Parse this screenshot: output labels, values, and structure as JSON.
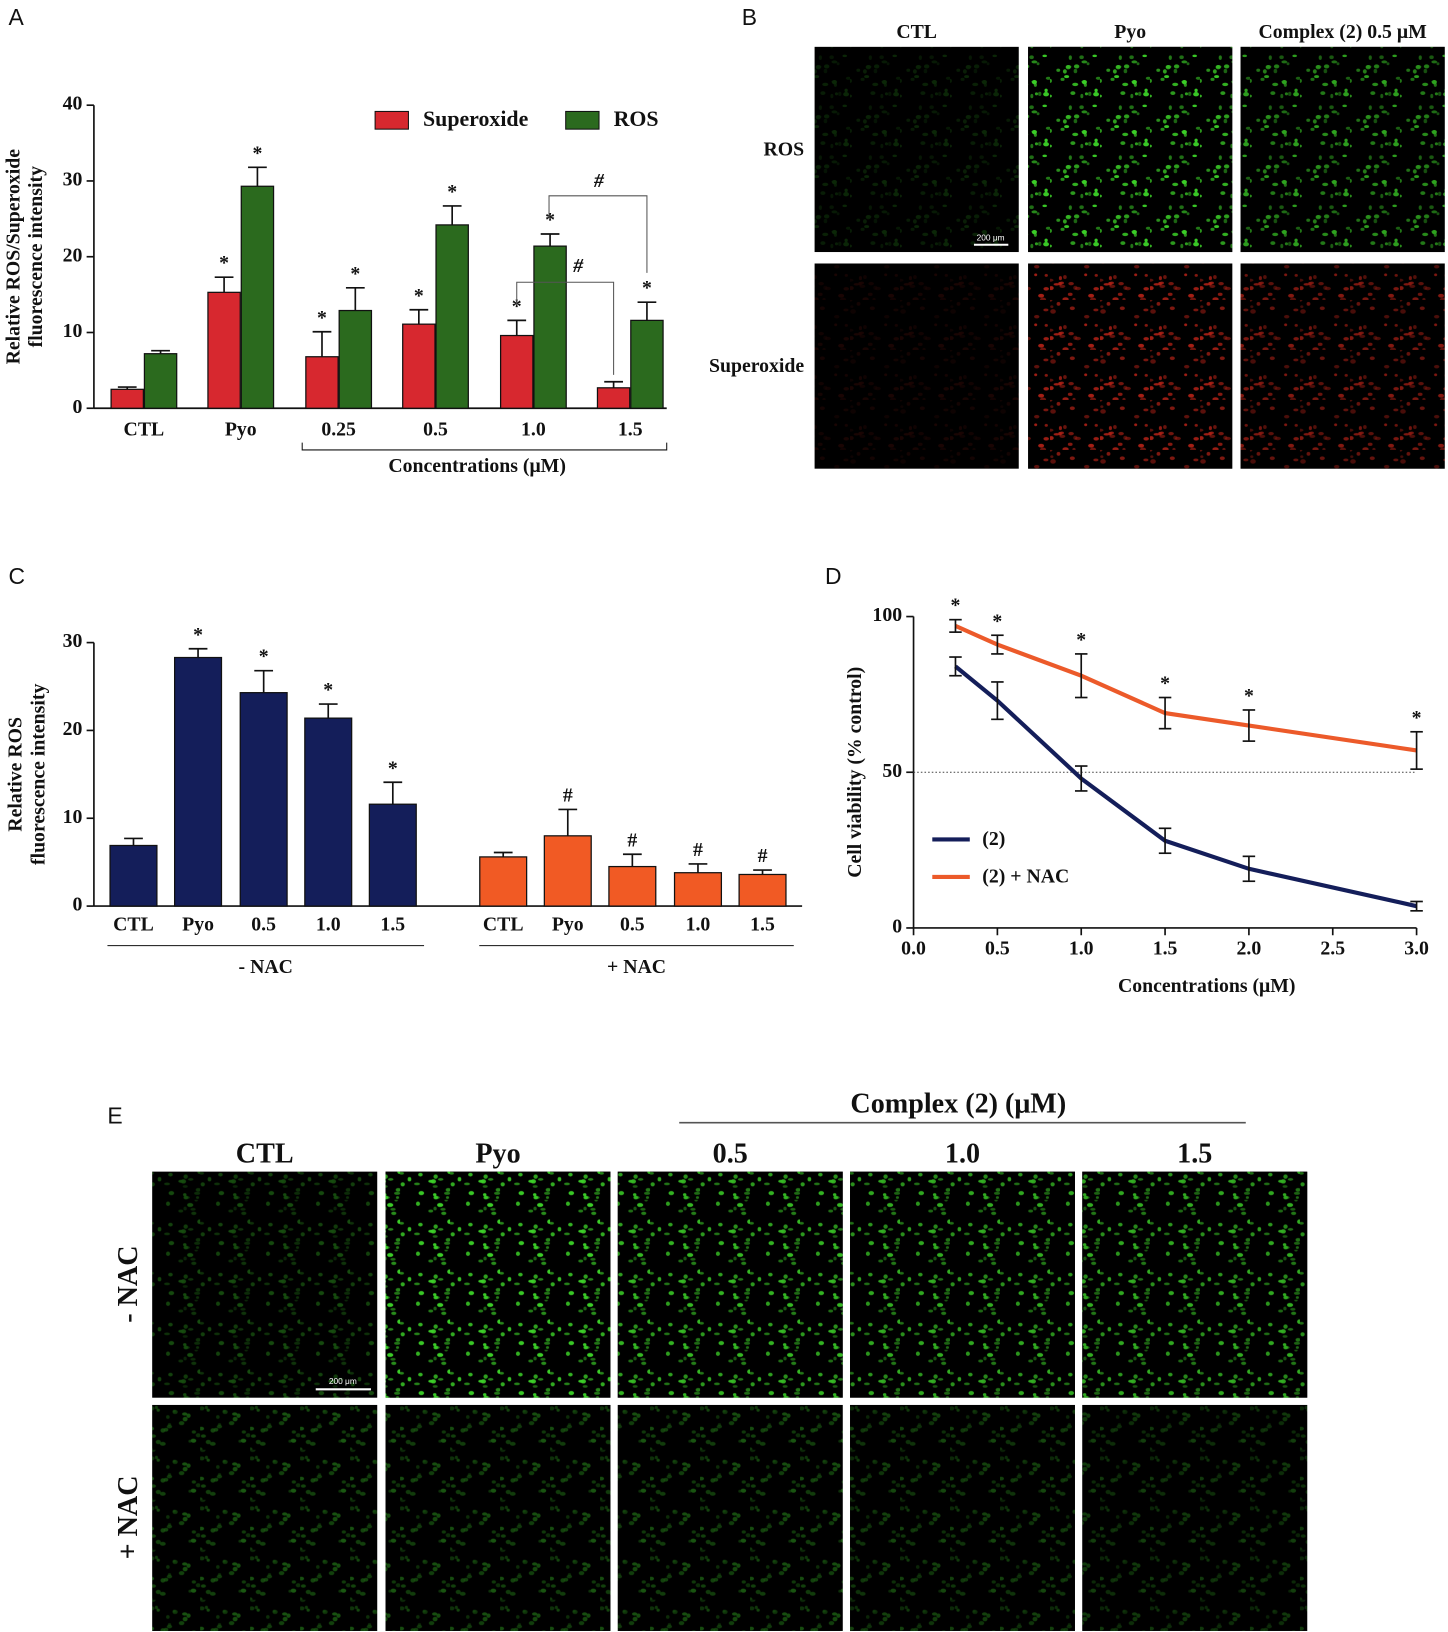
{
  "chart_data": [
    {
      "label": "A",
      "type": "bar",
      "ylabel": [
        "Relative ROS/Superoxide",
        "fluorescence intensity"
      ],
      "categories": [
        "CTL",
        "Pyo",
        "0.25",
        "0.5",
        "1.0",
        "1.5"
      ],
      "group_label": "Concentrations (μM)",
      "series": [
        {
          "name": "Superoxide",
          "color": "#d7282f",
          "values": [
            2.5,
            15.3,
            6.8,
            11.1,
            9.6,
            2.7
          ],
          "errors": [
            0.3,
            2.0,
            3.3,
            1.9,
            2.0,
            0.8
          ],
          "marks": [
            null,
            "*",
            "*",
            "*",
            "*",
            null
          ]
        },
        {
          "name": "ROS",
          "color": "#2b6a1e",
          "values": [
            7.2,
            29.3,
            12.9,
            24.2,
            21.4,
            11.6
          ],
          "errors": [
            0.4,
            2.5,
            3.0,
            2.5,
            1.6,
            2.4
          ],
          "marks": [
            null,
            "*",
            "*",
            "*",
            "*",
            "*"
          ]
        }
      ],
      "annotations": [
        "#",
        "#"
      ],
      "ylim": [
        0,
        40
      ],
      "yticks": [
        0,
        10,
        20,
        30,
        40
      ]
    },
    {
      "label": "C",
      "type": "bar",
      "ylabel": [
        "Relative ROS",
        "fluorescence intensity"
      ],
      "groups": [
        {
          "name": "- NAC",
          "color": "#141e5a",
          "categories": [
            "CTL",
            "Pyo",
            "0.5",
            "1.0",
            "1.5"
          ],
          "values": [
            6.9,
            28.3,
            24.3,
            21.4,
            11.6
          ],
          "errors": [
            0.8,
            1.0,
            2.5,
            1.6,
            2.5
          ],
          "marks": [
            null,
            "*",
            "*",
            "*",
            "*"
          ]
        },
        {
          "name": "+ NAC",
          "color": "#f15a24",
          "categories": [
            "CTL",
            "Pyo",
            "0.5",
            "1.0",
            "1.5"
          ],
          "values": [
            5.6,
            8.0,
            4.5,
            3.8,
            3.6
          ],
          "errors": [
            0.5,
            3.0,
            1.4,
            1.0,
            0.5
          ],
          "marks": [
            null,
            "#",
            "#",
            "#",
            "#"
          ]
        }
      ],
      "ylim": [
        0,
        30
      ],
      "yticks": [
        0,
        10,
        20,
        30
      ]
    },
    {
      "label": "D",
      "type": "line",
      "xlabel": "Concentrations (μM)",
      "ylabel": [
        "Cell viability (% control)"
      ],
      "x": [
        0.25,
        0.5,
        1.0,
        1.5,
        2.0,
        3.0
      ],
      "series": [
        {
          "name": "(2)",
          "color": "#141e5a",
          "values": [
            84,
            73,
            48,
            28,
            19,
            7
          ],
          "errors": [
            3,
            6,
            4,
            4,
            4,
            1.5
          ],
          "marks": [
            null,
            null,
            null,
            null,
            null,
            null
          ]
        },
        {
          "name": "(2) + NAC",
          "color": "#ec5a2a",
          "values": [
            97,
            91,
            81,
            69,
            65,
            57
          ],
          "errors": [
            2,
            3,
            7,
            5,
            5,
            6
          ],
          "marks": [
            "*",
            "*",
            "*",
            "*",
            "*",
            "*"
          ]
        }
      ],
      "reference_line": 50,
      "xlim": [
        0,
        3
      ],
      "xticks": [
        {
          "value": 0,
          "label": "0.0"
        },
        0.5,
        {
          "value": 1,
          "label": "1.0"
        },
        1.5,
        {
          "value": 2,
          "label": "2.0"
        },
        2.5,
        {
          "value": 3,
          "label": "3.0"
        }
      ],
      "ylim": [
        0,
        100
      ],
      "yticks": [
        0,
        50,
        100
      ]
    }
  ],
  "image_panels": [
    {
      "label": "B",
      "columns": [
        "CTL",
        "Pyo",
        "Complex (2) 0.5 μM"
      ],
      "rows": [
        "ROS",
        "Superoxide"
      ],
      "row_colors": [
        "#3fdc2a",
        "#e02a1c"
      ],
      "scale_bar": "200 μm"
    },
    {
      "label": "E",
      "header": "Complex (2) (μM)",
      "columns": [
        "CTL",
        "Pyo",
        "0.5",
        "1.0",
        "1.5"
      ],
      "rows": [
        "- NAC",
        "+ NAC"
      ],
      "row_colors": [
        "#3fdc2a",
        "#3fdc2a"
      ],
      "scale_bar": "200 μm"
    }
  ]
}
